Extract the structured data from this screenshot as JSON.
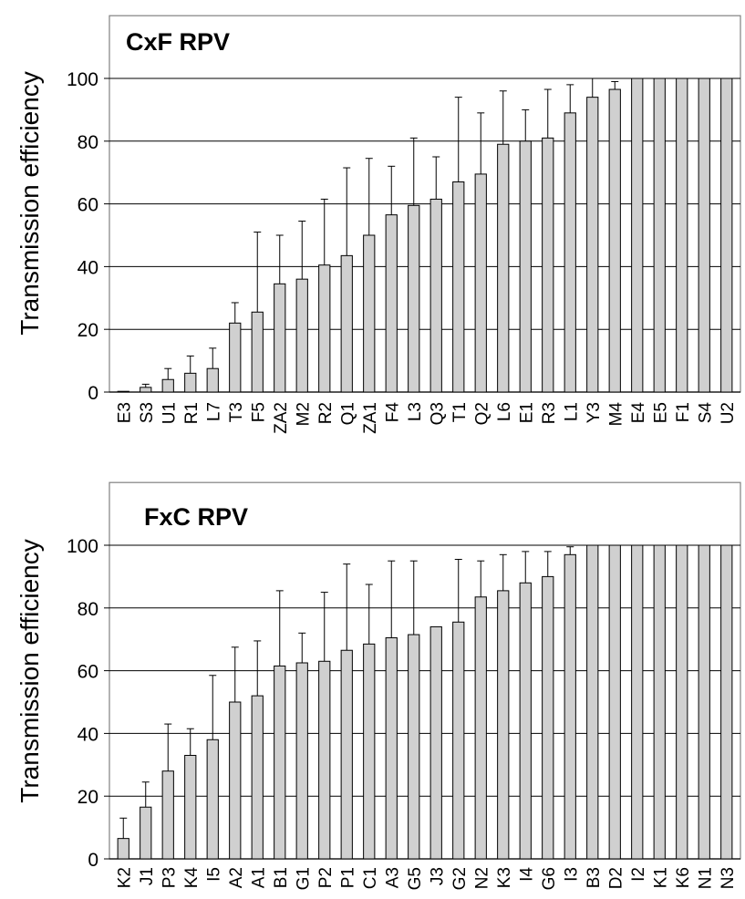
{
  "colors": {
    "bar_fill": "#d0d0d0",
    "bar_stroke": "#000000",
    "grid": "#000000",
    "frame": "#808080"
  },
  "chart_data": [
    {
      "type": "bar",
      "title": "CxF RPV",
      "ylabel": "Transmission efficiency",
      "xlabel": "",
      "ylim": [
        0,
        120
      ],
      "yticks": [
        0,
        20,
        40,
        60,
        80,
        100
      ],
      "grid": true,
      "categories": [
        "E3",
        "S3",
        "U1",
        "R1",
        "L7",
        "T3",
        "F5",
        "ZA2",
        "M2",
        "R2",
        "Q1",
        "ZA1",
        "F4",
        "L3",
        "Q3",
        "T1",
        "Q2",
        "L6",
        "E1",
        "R3",
        "L1",
        "Y3",
        "M4",
        "E4",
        "E5",
        "F1",
        "S4",
        "U2"
      ],
      "values": [
        0,
        1.5,
        4,
        6,
        7.5,
        22,
        25.5,
        34.5,
        36,
        40.5,
        43.5,
        50,
        56.5,
        59.5,
        61.5,
        67,
        69.5,
        79,
        80,
        81,
        89,
        94,
        96.5,
        100,
        100,
        100,
        100,
        100
      ],
      "error_upper": [
        0,
        2.5,
        7.5,
        11.5,
        14,
        28.5,
        51,
        50,
        54.5,
        61.5,
        71.5,
        74.5,
        72,
        81,
        75,
        94,
        89,
        96,
        90,
        96.5,
        98,
        100,
        99,
        100,
        100,
        100,
        100,
        100
      ]
    },
    {
      "type": "bar",
      "title": "FxC RPV",
      "ylabel": "Transmission efficiency",
      "xlabel": "",
      "ylim": [
        0,
        120
      ],
      "yticks": [
        0,
        20,
        40,
        60,
        80,
        100
      ],
      "grid": true,
      "categories": [
        "K2",
        "J1",
        "P3",
        "K4",
        "I5",
        "A2",
        "A1",
        "B1",
        "G1",
        "P2",
        "P1",
        "C1",
        "A3",
        "G5",
        "J3",
        "G2",
        "N2",
        "K3",
        "I4",
        "G6",
        "I3",
        "B3",
        "D2",
        "I2",
        "K1",
        "K6",
        "N1",
        "N3"
      ],
      "values": [
        6.5,
        16.5,
        28,
        33,
        38,
        50,
        52,
        61.5,
        62.5,
        63,
        66.5,
        68.5,
        70.5,
        71.5,
        74,
        75.5,
        83.5,
        85.5,
        88,
        90,
        97,
        100,
        100,
        100,
        100,
        100,
        100,
        100
      ],
      "error_upper": [
        13,
        24.5,
        43,
        41.5,
        58.5,
        67.5,
        69.5,
        85.5,
        72,
        85,
        94,
        87.5,
        95,
        95,
        74,
        95.5,
        95,
        97,
        98,
        98,
        99.5,
        100,
        100,
        100,
        100,
        100,
        100,
        100
      ]
    }
  ]
}
